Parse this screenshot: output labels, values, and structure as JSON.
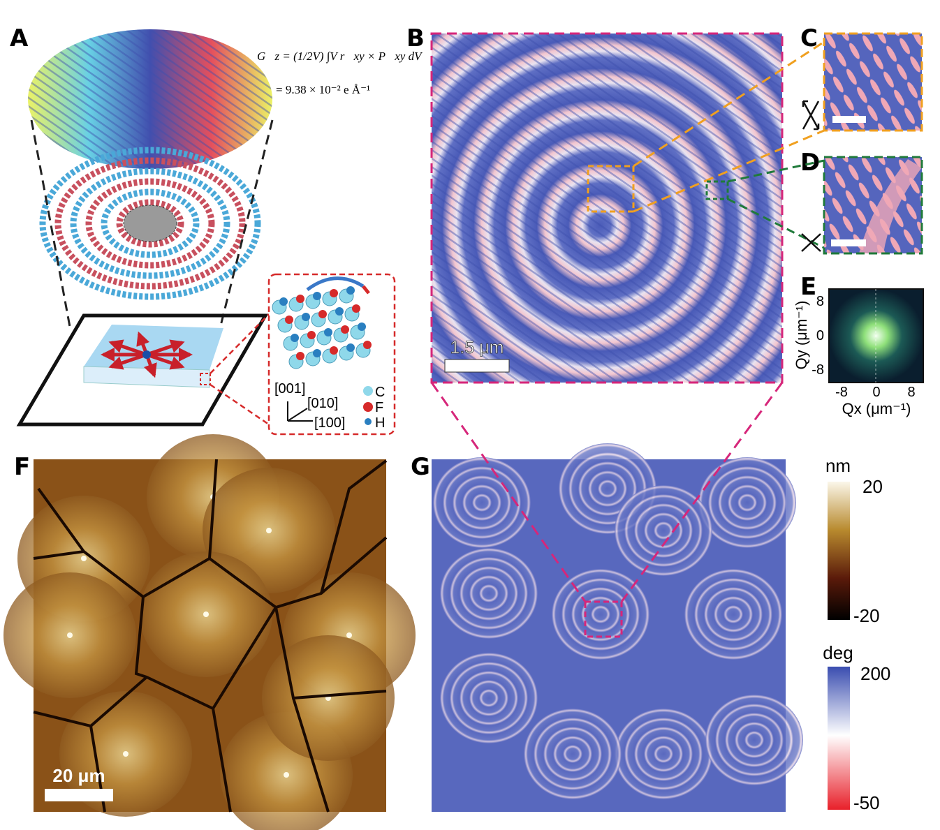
{
  "labels": [
    "A",
    "B",
    "C",
    "D",
    "E",
    "F",
    "G"
  ],
  "panel_a": {
    "equation": "G⃗z = (1/2V) ∫V r⃗xy × P⃗xy dV",
    "result": "= 9.38 × 10⁻² e Å⁻¹",
    "directions": [
      "[001]",
      "[010]",
      "[100]"
    ],
    "atoms": [
      "C",
      "F",
      "H"
    ]
  },
  "panel_b": {
    "scale_bar": "1.5 μm"
  },
  "panel_e": {
    "y_label": "Qy (μm⁻¹)",
    "x_label": "Qx (μm⁻¹)",
    "y_ticks": [
      8,
      0,
      -8
    ],
    "x_ticks": [
      -8,
      0,
      8
    ]
  },
  "panel_f": {
    "scale_bar": "20 μm"
  },
  "colorbars": [
    {
      "unit": "nm",
      "max": 20,
      "min": -20
    },
    {
      "unit": "deg",
      "max": 200,
      "min": -50
    }
  ]
}
